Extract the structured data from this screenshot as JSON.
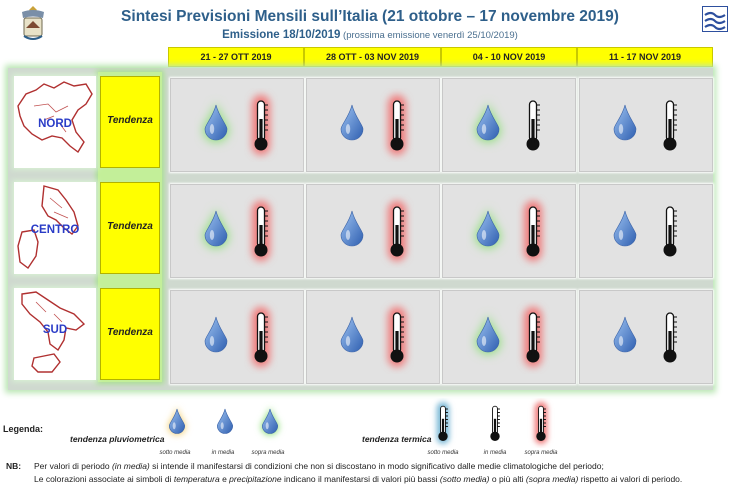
{
  "title": "Sintesi  Previsioni Mensili sull’Italia (21 ottobre – 17 novembre 2019)",
  "subtitle": {
    "main": "Emissione 18/10/2019",
    "note": " (prossima emissione venerdì 25/10/2019)"
  },
  "periods": [
    "21 - 27 OTT 2019",
    "28 OTT - 03 NOV 2019",
    "04 - 10 NOV 2019",
    "11 - 17 NOV 2019"
  ],
  "regions": [
    {
      "name": "NORD",
      "tendency_label": "Tendenza"
    },
    {
      "name": "CENTRO",
      "tendency_label": "Tendenza"
    },
    {
      "name": "SUD",
      "tendency_label": "Tendenza"
    }
  ],
  "grid": [
    [
      {
        "precipitation": "above",
        "temperature": "above"
      },
      {
        "precipitation": "normal",
        "temperature": "above"
      },
      {
        "precipitation": "above",
        "temperature": "normal"
      },
      {
        "precipitation": "normal",
        "temperature": "normal"
      }
    ],
    [
      {
        "precipitation": "above",
        "temperature": "above"
      },
      {
        "precipitation": "normal",
        "temperature": "above"
      },
      {
        "precipitation": "above",
        "temperature": "above"
      },
      {
        "precipitation": "normal",
        "temperature": "normal"
      }
    ],
    [
      {
        "precipitation": "normal",
        "temperature": "above"
      },
      {
        "precipitation": "normal",
        "temperature": "above"
      },
      {
        "precipitation": "above",
        "temperature": "above"
      },
      {
        "precipitation": "normal",
        "temperature": "normal"
      }
    ]
  ],
  "legend": {
    "title": "Legenda:",
    "precipitation_caption": "tendenza pluviometrica",
    "temperature_caption": "tendenza termica",
    "below": "sotto media",
    "normal": "in media",
    "above": "sopra media"
  },
  "colors": {
    "below": "#f5d27a",
    "normal": "#e2e2e2",
    "above_precip": "#8fe07a",
    "above_temp": "#f07a7a",
    "below_temp": "#7ab8d6",
    "accent": "#ffff00"
  },
  "notes": {
    "label": "NB:",
    "line1": [
      {
        "t": "Per valori di periodo ",
        "i": false
      },
      {
        "t": "(in media)",
        "i": true
      },
      {
        "t": " si intende il manifestarsi di condizioni che non si discostano in modo  significativo dalle medie climatologiche del periodo;",
        "i": false
      }
    ],
    "line2": [
      {
        "t": "Le colorazioni associate ai simboli di ",
        "i": false
      },
      {
        "t": "temperatura",
        "i": true
      },
      {
        "t": " e ",
        "i": false
      },
      {
        "t": "precipitazione",
        "i": true
      },
      {
        "t": " indicano il manifestarsi di valori più bassi ",
        "i": false
      },
      {
        "t": "(sotto media)",
        "i": true
      },
      {
        "t": " o più alti ",
        "i": false
      },
      {
        "t": "(sopra media)",
        "i": true
      },
      {
        "t": " rispetto ai valori di periodo.",
        "i": false
      }
    ]
  }
}
